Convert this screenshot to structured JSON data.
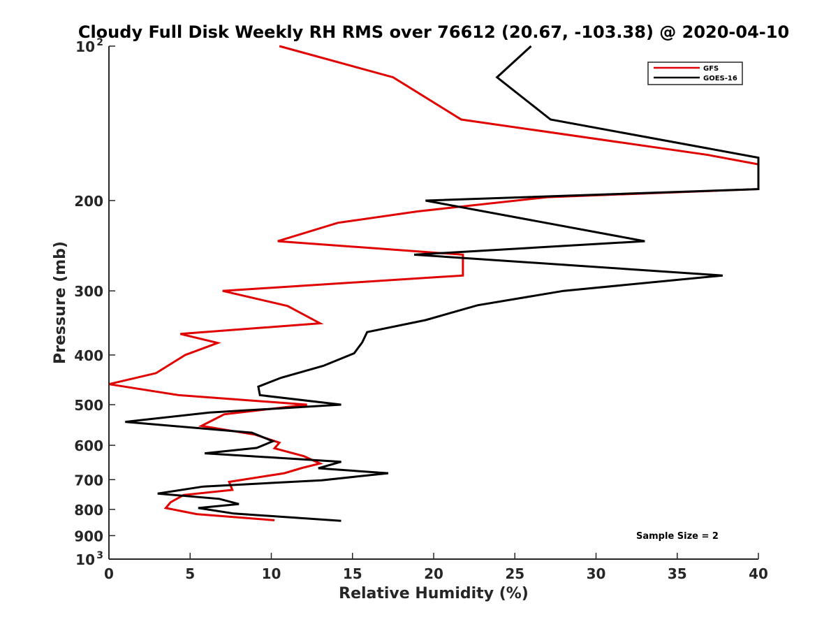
{
  "chart_data": {
    "type": "line",
    "title": "Cloudy Full Disk Weekly RH RMS over 76612 (20.67, -103.38) @ 2020-04-10",
    "xlabel": "Relative Humidity (%)",
    "ylabel": "Pressure (mb)",
    "xlim": [
      0,
      40
    ],
    "ylim": [
      100,
      1000
    ],
    "yscale": "log",
    "yreversed": true,
    "grid": false,
    "legend_position": "top-right",
    "x_ticks": [
      "0",
      "5",
      "10",
      "15",
      "20",
      "25",
      "30",
      "35",
      "40"
    ],
    "y_ticks": [
      {
        "value": 100,
        "label": "10",
        "sup": "2"
      },
      {
        "value": 200,
        "label": "200",
        "sup": ""
      },
      {
        "value": 300,
        "label": "300",
        "sup": ""
      },
      {
        "value": 400,
        "label": "400",
        "sup": ""
      },
      {
        "value": 500,
        "label": "500",
        "sup": ""
      },
      {
        "value": 600,
        "label": "600",
        "sup": ""
      },
      {
        "value": 700,
        "label": "700",
        "sup": ""
      },
      {
        "value": 800,
        "label": "800",
        "sup": ""
      },
      {
        "value": 900,
        "label": "900",
        "sup": ""
      },
      {
        "value": 1000,
        "label": "10",
        "sup": "3"
      }
    ],
    "series": [
      {
        "name": "GFS",
        "color": "#e00000",
        "points": [
          [
            10.5,
            100
          ],
          [
            17.5,
            115
          ],
          [
            21.7,
            139
          ],
          [
            36.9,
            163
          ],
          [
            40,
            170
          ],
          [
            40,
            190
          ],
          [
            27,
            197
          ],
          [
            19,
            210
          ],
          [
            14.1,
            221
          ],
          [
            10.4,
            240
          ],
          [
            21.8,
            255
          ],
          [
            21.8,
            280
          ],
          [
            7,
            300
          ],
          [
            11,
            321
          ],
          [
            13,
            347
          ],
          [
            4.4,
            364
          ],
          [
            6.7,
            379
          ],
          [
            4.7,
            400
          ],
          [
            2.9,
            434
          ],
          [
            0,
            456
          ],
          [
            4.3,
            479
          ],
          [
            12.2,
            500
          ],
          [
            7.1,
            522
          ],
          [
            5.7,
            550
          ],
          [
            9,
            572
          ],
          [
            10.5,
            593
          ],
          [
            10.2,
            608
          ],
          [
            12,
            630
          ],
          [
            13,
            651
          ],
          [
            11.9,
            664
          ],
          [
            10.8,
            680
          ],
          [
            7.4,
            707
          ],
          [
            7.6,
            733
          ],
          [
            4.6,
            750
          ],
          [
            3.8,
            775
          ],
          [
            3.5,
            795
          ],
          [
            5.4,
            817
          ],
          [
            10.2,
            840
          ]
        ]
      },
      {
        "name": "GOES-16",
        "color": "#000000",
        "points": [
          [
            26,
            100
          ],
          [
            23.9,
            115
          ],
          [
            27.2,
            139
          ],
          [
            40,
            165
          ],
          [
            40,
            190
          ],
          [
            19.5,
            200
          ],
          [
            33,
            240
          ],
          [
            18.8,
            255
          ],
          [
            37.8,
            280
          ],
          [
            28,
            300
          ],
          [
            22.7,
            320
          ],
          [
            19.5,
            342
          ],
          [
            15.9,
            361
          ],
          [
            15.6,
            378
          ],
          [
            15.1,
            397
          ],
          [
            13.2,
            420
          ],
          [
            10.6,
            443
          ],
          [
            9.2,
            461
          ],
          [
            9.3,
            479
          ],
          [
            14.3,
            500
          ],
          [
            6.2,
            518
          ],
          [
            1,
            540
          ],
          [
            8.8,
            567
          ],
          [
            10.1,
            589
          ],
          [
            9.1,
            607
          ],
          [
            5.9,
            622
          ],
          [
            14.3,
            646
          ],
          [
            12.9,
            665
          ],
          [
            17.2,
            680
          ],
          [
            13.1,
            702
          ],
          [
            5.8,
            722
          ],
          [
            3,
            745
          ],
          [
            6.8,
            763
          ],
          [
            8,
            781
          ],
          [
            5.5,
            795
          ],
          [
            7.7,
            815
          ],
          [
            14.3,
            842
          ]
        ]
      }
    ],
    "annotations": [
      "Sample Size = 2"
    ]
  }
}
